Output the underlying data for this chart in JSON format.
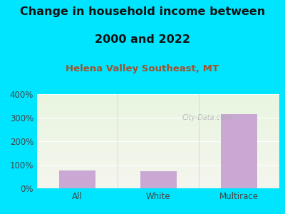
{
  "title_line1": "Change in household income between",
  "title_line2": "2000 and 2022",
  "subtitle": "Helena Valley Southeast, MT",
  "categories": [
    "All",
    "White",
    "Multirace"
  ],
  "values": [
    75,
    72,
    315
  ],
  "bar_color": "#c9a8d4",
  "background_outer": "#00e5ff",
  "background_plot_top": "#e8f5e0",
  "background_plot_bottom": "#f5f5ee",
  "title_fontsize": 11.5,
  "subtitle_fontsize": 9.5,
  "tick_fontsize": 8.5,
  "ylim": [
    0,
    400
  ],
  "yticks": [
    0,
    100,
    200,
    300,
    400
  ],
  "ytick_labels": [
    "0%",
    "100%",
    "200%",
    "300%",
    "400%"
  ],
  "watermark": "City-Data.com",
  "title_color": "#111111",
  "subtitle_color": "#a0522d",
  "tick_color": "#444444",
  "bar_width": 0.45,
  "grid_color": "#ffffff",
  "separator_color": "#cccccc",
  "bottom_line_color": "#aaaaaa"
}
